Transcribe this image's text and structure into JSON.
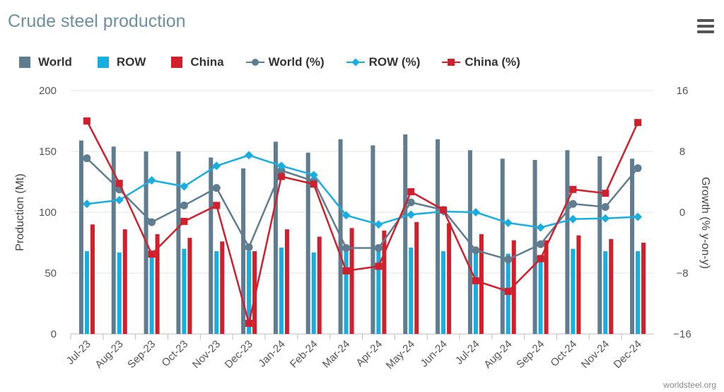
{
  "chart_title": "Crude steel production",
  "menu_icon": "hamburger-menu-icon",
  "credit": "worldsteel.org",
  "colors": {
    "world": "#5f7d8f",
    "row": "#19aee0",
    "china": "#d0202e",
    "title": "#6b8fa3"
  },
  "chart_data": {
    "type": "bar",
    "title": "Crude steel production",
    "ylabel": "Production (Mt)",
    "y2label": "Growth (% y-on-y)",
    "ylim": [
      0,
      200
    ],
    "y2lim": [
      -16,
      16
    ],
    "yticks": [
      "0",
      "50",
      "100",
      "150",
      "200"
    ],
    "y2ticks": [
      "−16",
      "−8",
      "0",
      "8",
      "16"
    ],
    "legend_position": "top-left",
    "grid": true,
    "categories": [
      "Jul-23",
      "Aug-23",
      "Sep-23",
      "Oct-23",
      "Nov-23",
      "Dec-23",
      "Jan-24",
      "Feb-24",
      "Mar-24",
      "Apr-24",
      "May-24",
      "Jun-24",
      "Jul-24",
      "Aug-24",
      "Sep-24",
      "Oct-24",
      "Nov-24",
      "Dec-24"
    ],
    "bar_series": [
      {
        "name": "World",
        "values": [
          159,
          154,
          150,
          150,
          145,
          136,
          158,
          149,
          160,
          155,
          164,
          160,
          151,
          144,
          143,
          151,
          146,
          144
        ]
      },
      {
        "name": "ROW",
        "values": [
          68,
          67,
          66,
          70,
          68,
          68,
          71,
          67,
          73,
          70,
          71,
          68,
          70,
          66,
          65,
          70,
          68,
          68
        ]
      },
      {
        "name": "China",
        "values": [
          90,
          86,
          82,
          79,
          76,
          68,
          86,
          80,
          87,
          85,
          92,
          91,
          82,
          77,
          77,
          81,
          78,
          75
        ]
      }
    ],
    "line_series": [
      {
        "name": "World (%)",
        "marker": "circle",
        "values": [
          7.1,
          3.0,
          -1.3,
          0.9,
          3.2,
          -4.6,
          5.5,
          4.1,
          -4.7,
          -4.7,
          1.3,
          0.3,
          -5.0,
          -6.2,
          -4.2,
          1.1,
          0.7,
          5.8
        ]
      },
      {
        "name": "ROW (%)",
        "marker": "diamond",
        "values": [
          1.1,
          1.6,
          4.2,
          3.4,
          6.1,
          7.5,
          6.1,
          4.9,
          -0.4,
          -1.6,
          -0.3,
          0.1,
          0.0,
          -1.4,
          -2.0,
          -0.9,
          -0.8,
          -0.6
        ]
      },
      {
        "name": "China (%)",
        "marker": "square",
        "values": [
          12.0,
          3.8,
          -5.5,
          -1.2,
          0.9,
          -14.6,
          4.7,
          3.7,
          -7.7,
          -7.1,
          2.7,
          0.3,
          -9.0,
          -10.4,
          -6.1,
          3.0,
          2.5,
          11.8
        ]
      }
    ]
  }
}
